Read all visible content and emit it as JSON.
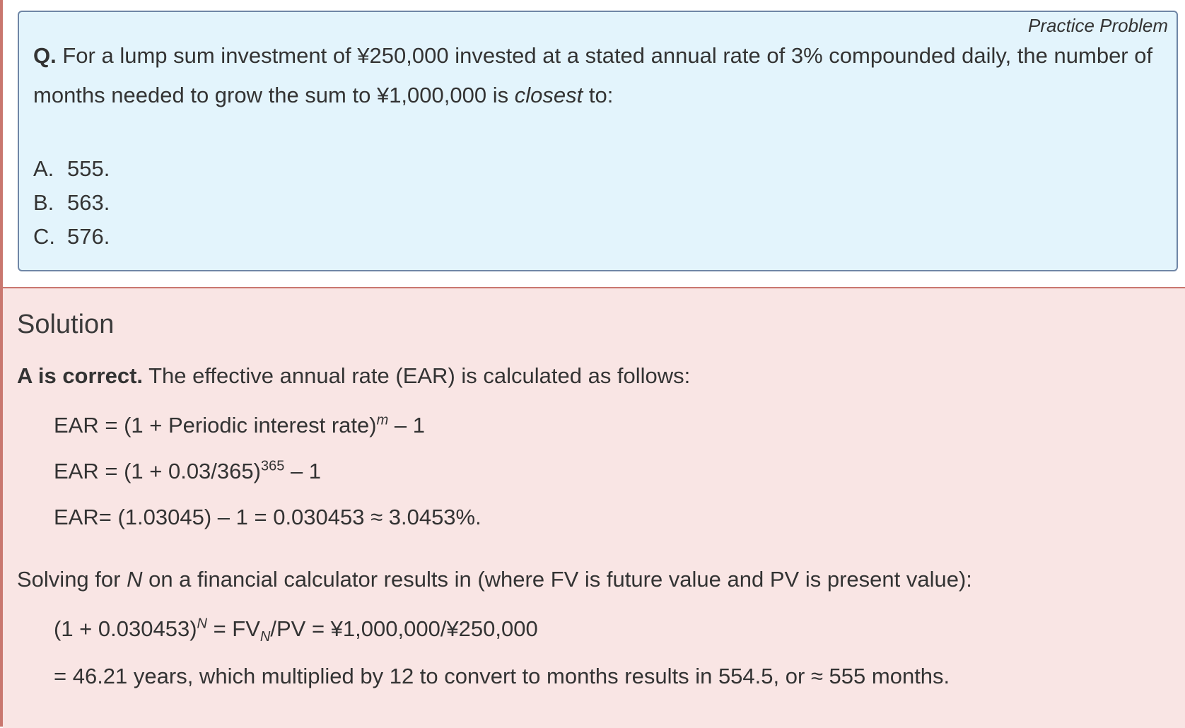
{
  "practice_label": "Practice Problem",
  "question": {
    "q_mark": "Q.",
    "text_before_italic": "For a lump sum investment of ¥250,000 invested at a stated annual rate of 3% compounded daily, the number of months needed to grow the sum to ¥1,000,000 is",
    "italic_word": "closest",
    "text_after_italic": "to:"
  },
  "options": [
    {
      "letter": "A.",
      "value": "555."
    },
    {
      "letter": "B.",
      "value": "563."
    },
    {
      "letter": "C.",
      "value": "576."
    }
  ],
  "solution": {
    "title": "Solution",
    "correct_label": "A is correct.",
    "intro": "The effective annual rate (EAR) is calculated as follows:",
    "ear_line1": {
      "base": "EAR = (1 + Periodic interest rate)",
      "sup": "m",
      "tail": " – 1"
    },
    "ear_line2": {
      "base": "EAR = (1 + 0.03/365)",
      "sup": "365",
      "tail": " – 1"
    },
    "ear_line3": "EAR= (1.03045) – 1 = 0.030453 ≈ 3.0453%.",
    "solving": {
      "before": "Solving for ",
      "var": "N",
      "after": " on a financial calculator results in (where FV is future value and PV is present value):"
    },
    "eq_line": {
      "base": "(1 + 0.030453)",
      "sup": "N",
      "mid": " = FV",
      "sub": "N",
      "tail": "/PV = ¥1,000,000/¥250,000"
    },
    "result_line": "= 46.21 years, which multiplied by 12 to convert to months results in 554.5, or ≈ 555 months."
  }
}
